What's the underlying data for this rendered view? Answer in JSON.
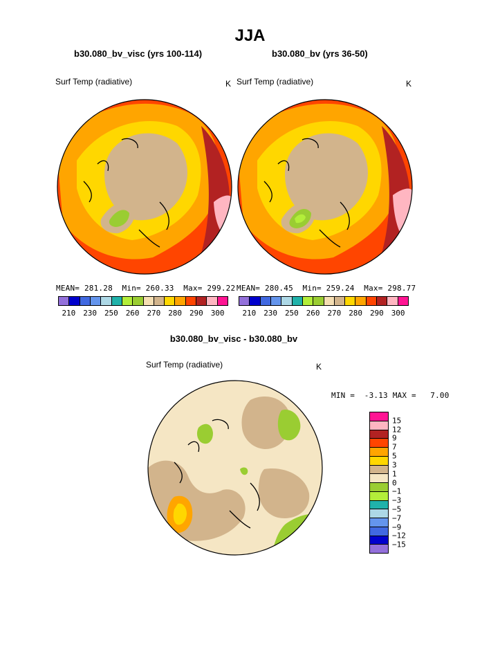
{
  "page_title": "JJA",
  "panels": [
    {
      "subtitle": "b30.080_bv_visc (yrs 100-114)",
      "field_label": "Surf Temp (radiative)",
      "units": "K",
      "stats": {
        "mean_label": "MEAN=",
        "mean": "281.28",
        "min_label": "Min=",
        "min": "260.33",
        "max_label": "Max=",
        "max": "299.22"
      }
    },
    {
      "subtitle": "b30.080_bv (yrs 36-50)",
      "field_label": "Surf Temp (radiative)",
      "units": "K",
      "stats": {
        "mean_label": "MEAN=",
        "mean": "280.45",
        "min_label": "Min=",
        "min": "259.24",
        "max_label": "Max=",
        "max": "298.77"
      }
    }
  ],
  "temp_colorbar": {
    "colors": [
      "#9370db",
      "#0000cd",
      "#4169e1",
      "#6495ed",
      "#add8e6",
      "#20b2aa",
      "#b3ee3a",
      "#9acd32",
      "#f5deb3",
      "#d2b48c",
      "#ffd700",
      "#ffa500",
      "#ff4500",
      "#b22222",
      "#ffb6c1",
      "#ff1493"
    ],
    "tick_labels": [
      "210",
      "230",
      "250",
      "260",
      "270",
      "280",
      "290",
      "300"
    ]
  },
  "diff_panel": {
    "subtitle": "b30.080_bv_visc - b30.080_bv",
    "field_label": "Surf Temp (radiative)",
    "units": "K",
    "minmax_text": "MIN =  -3.13 MAX =   7.00",
    "colorbar": {
      "colors": [
        "#ff1493",
        "#ffb6c1",
        "#b22222",
        "#ff4500",
        "#ffa500",
        "#ffd700",
        "#d2b48c",
        "#f5e6c4",
        "#9acd32",
        "#b3ee3a",
        "#20b2aa",
        "#add8e6",
        "#6495ed",
        "#4169e1",
        "#0000cd",
        "#9370db"
      ],
      "tick_labels": [
        "15",
        "12",
        "9",
        "7",
        "5",
        "3",
        "1",
        "0",
        "−1",
        "−3",
        "−5",
        "−7",
        "−9",
        "−12",
        "−15"
      ]
    }
  },
  "map_regions": {
    "ocean_gradient": [
      "#ff4500",
      "#ffa500",
      "#ffd700"
    ],
    "arctic_land": "#d2b48c",
    "greenland_core": "#9acd32",
    "diff_background": "#f5e6c4",
    "diff_positive": "#d2b48c",
    "diff_negative": "#9acd32",
    "diff_hotspot": "#ffa500"
  }
}
